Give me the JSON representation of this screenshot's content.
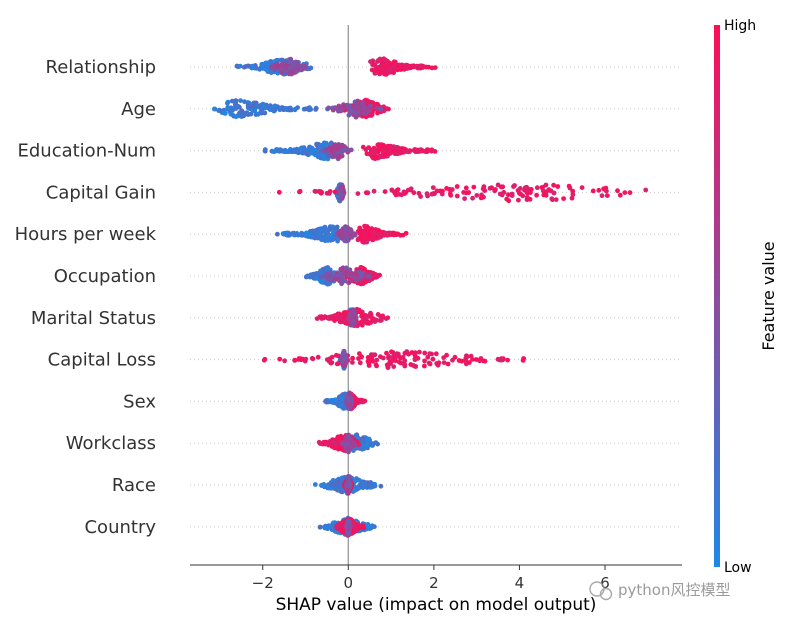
{
  "chart_data": {
    "type": "scatter",
    "subtype": "shap-beeswarm-summary",
    "xlabel": "SHAP value (impact on model output)",
    "xlim": [
      -3.7,
      7.8
    ],
    "xticks": [
      -2,
      0,
      2,
      4,
      6
    ],
    "xtick_labels": [
      "−2",
      "0",
      "2",
      "4",
      "6"
    ],
    "colorbar": {
      "title": "Feature value",
      "high_label": "High",
      "low_label": "Low",
      "low_color": "#1e88e5",
      "high_color": "#ff0d57"
    },
    "features": [
      {
        "name": "Relationship",
        "low_range": [
          -2.7,
          -0.8
        ],
        "low_center": -1.5,
        "high_range": [
          0.5,
          2.1
        ],
        "high_center": 0.8,
        "mid_range": [
          -1.9,
          -0.9
        ]
      },
      {
        "name": "Age",
        "low_range": [
          -3.2,
          -0.3
        ],
        "low_center": -2.6,
        "high_range": [
          -0.3,
          1.0
        ],
        "high_center": 0.4,
        "mid_range": [
          -0.5,
          0.8
        ]
      },
      {
        "name": "Education-Num",
        "low_range": [
          -2.1,
          -0.2
        ],
        "low_center": -0.5,
        "high_range": [
          0.3,
          2.2
        ],
        "high_center": 0.6,
        "mid_range": [
          -0.6,
          0.1
        ]
      },
      {
        "name": "Capital Gain",
        "low_range": [
          -0.3,
          -0.1
        ],
        "low_center": -0.2,
        "high_range": [
          -2.4,
          7.3
        ],
        "high_center": 4.0,
        "mid_range": [
          -0.2,
          -0.1
        ]
      },
      {
        "name": "Hours per week",
        "low_range": [
          -1.7,
          -0.1
        ],
        "low_center": -0.4,
        "high_range": [
          0.2,
          1.4
        ],
        "high_center": 0.4,
        "mid_range": [
          -0.3,
          0.2
        ]
      },
      {
        "name": "Occupation",
        "low_range": [
          -1.0,
          -0.1
        ],
        "low_center": -0.5,
        "high_range": [
          -0.1,
          0.8
        ],
        "high_center": 0.3,
        "mid_range": [
          -0.8,
          0.6
        ]
      },
      {
        "name": "Marital Status",
        "low_range": [
          -0.1,
          0.2
        ],
        "low_center": 0.05,
        "high_range": [
          -0.8,
          1.0
        ],
        "high_center": 0.2,
        "mid_range": [
          0.0,
          0.2
        ]
      },
      {
        "name": "Capital Loss",
        "low_range": [
          -0.2,
          -0.05
        ],
        "low_center": -0.1,
        "high_range": [
          -2.2,
          4.2
        ],
        "high_center": 1.2,
        "mid_range": [
          -0.15,
          -0.05
        ]
      },
      {
        "name": "Sex",
        "low_range": [
          -0.6,
          0.1
        ],
        "low_center": -0.05,
        "high_range": [
          0.0,
          0.4
        ],
        "high_center": 0.05,
        "mid_range": [
          -0.05,
          0.1
        ]
      },
      {
        "name": "Workclass",
        "low_range": [
          -0.5,
          0.7
        ],
        "low_center": 0.2,
        "high_range": [
          -0.7,
          0.3
        ],
        "high_center": -0.1,
        "mid_range": [
          -0.15,
          0.15
        ]
      },
      {
        "name": "Race",
        "low_range": [
          -0.8,
          0.8
        ],
        "low_center": 0.0,
        "high_range": [
          -0.1,
          0.1
        ],
        "high_center": 0.0,
        "mid_range": [
          -0.05,
          0.05
        ]
      },
      {
        "name": "Country",
        "low_range": [
          -0.7,
          0.7
        ],
        "low_center": 0.0,
        "high_range": [
          -0.3,
          0.4
        ],
        "high_center": 0.0,
        "mid_range": [
          -0.05,
          0.05
        ]
      }
    ]
  },
  "watermark": {
    "text": "python风控模型",
    "icon": "wechat-icon"
  }
}
